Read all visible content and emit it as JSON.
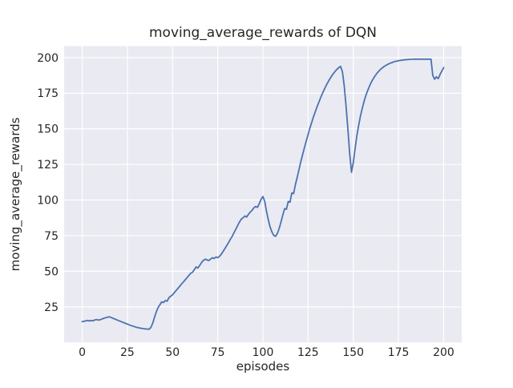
{
  "figure": {
    "kind": "matplotlib-figure",
    "style": "seaborn-darkgrid"
  },
  "chart_data": {
    "type": "line",
    "title": "moving_average_rewards of DQN",
    "xlabel": "episodes",
    "ylabel": "moving_average_rewards",
    "xticks": [
      0,
      25,
      50,
      75,
      100,
      125,
      150,
      175,
      200
    ],
    "yticks": [
      25,
      50,
      75,
      100,
      125,
      150,
      175,
      200
    ],
    "xlim": [
      -10,
      210
    ],
    "ylim": [
      0,
      208
    ],
    "grid": true,
    "legend": "none",
    "series": [
      {
        "name": "DQN",
        "points": [
          [
            0,
            14.6
          ],
          [
            1,
            14.9
          ],
          [
            2,
            15.2
          ],
          [
            3,
            15.4
          ],
          [
            4,
            15.1
          ],
          [
            5,
            15.4
          ],
          [
            6,
            15.2
          ],
          [
            7,
            15.8
          ],
          [
            8,
            16.1
          ],
          [
            9,
            15.7
          ],
          [
            10,
            16.0
          ],
          [
            11,
            16.5
          ],
          [
            12,
            17.0
          ],
          [
            13,
            17.4
          ],
          [
            14,
            17.8
          ],
          [
            15,
            18.0
          ],
          [
            16,
            17.5
          ],
          [
            17,
            17.0
          ],
          [
            18,
            16.5
          ],
          [
            19,
            16.0
          ],
          [
            20,
            15.4
          ],
          [
            21,
            14.9
          ],
          [
            22,
            14.4
          ],
          [
            23,
            13.9
          ],
          [
            24,
            13.4
          ],
          [
            25,
            12.9
          ],
          [
            26,
            12.4
          ],
          [
            27,
            11.9
          ],
          [
            28,
            11.5
          ],
          [
            29,
            11.1
          ],
          [
            30,
            10.7
          ],
          [
            31,
            10.4
          ],
          [
            32,
            10.1
          ],
          [
            33,
            9.9
          ],
          [
            34,
            9.7
          ],
          [
            35,
            9.5
          ],
          [
            36,
            9.4
          ],
          [
            37,
            9.3
          ],
          [
            38,
            10.5
          ],
          [
            39,
            13.5
          ],
          [
            40,
            17.5
          ],
          [
            41,
            21.5
          ],
          [
            42,
            24.5
          ],
          [
            43,
            26.5
          ],
          [
            44,
            28.5
          ],
          [
            45,
            28.0
          ],
          [
            46,
            29.5
          ],
          [
            47,
            29.0
          ],
          [
            48,
            31.5
          ],
          [
            49,
            32.5
          ],
          [
            50,
            33.5
          ],
          [
            51,
            35.0
          ],
          [
            52,
            36.5
          ],
          [
            53,
            38.0
          ],
          [
            54,
            39.5
          ],
          [
            55,
            41.0
          ],
          [
            56,
            42.5
          ],
          [
            57,
            44.0
          ],
          [
            58,
            45.5
          ],
          [
            59,
            47.0
          ],
          [
            60,
            48.5
          ],
          [
            61,
            49.3
          ],
          [
            62,
            51.0
          ],
          [
            63,
            53.0
          ],
          [
            64,
            52.2
          ],
          [
            65,
            54.0
          ],
          [
            66,
            56.0
          ],
          [
            67,
            57.5
          ],
          [
            68,
            58.5
          ],
          [
            69,
            58.0
          ],
          [
            70,
            57.5
          ],
          [
            71,
            58.5
          ],
          [
            72,
            59.5
          ],
          [
            73,
            59.0
          ],
          [
            74,
            60.0
          ],
          [
            75,
            59.5
          ],
          [
            76,
            60.5
          ],
          [
            77,
            62.0
          ],
          [
            78,
            64.0
          ],
          [
            79,
            66.0
          ],
          [
            80,
            68.0
          ],
          [
            81,
            70.2
          ],
          [
            82,
            72.5
          ],
          [
            83,
            74.5
          ],
          [
            84,
            77.0
          ],
          [
            85,
            79.5
          ],
          [
            86,
            82.0
          ],
          [
            87,
            84.5
          ],
          [
            88,
            86.5
          ],
          [
            89,
            87.5
          ],
          [
            90,
            88.8
          ],
          [
            91,
            88.0
          ],
          [
            92,
            90.0
          ],
          [
            93,
            91.5
          ],
          [
            94,
            92.8
          ],
          [
            95,
            94.5
          ],
          [
            96,
            95.5
          ],
          [
            97,
            94.8
          ],
          [
            98,
            97.5
          ],
          [
            99,
            100.5
          ],
          [
            100,
            102.5
          ],
          [
            101,
            99.0
          ],
          [
            102,
            92.0
          ],
          [
            103,
            86.0
          ],
          [
            104,
            81.0
          ],
          [
            105,
            77.5
          ],
          [
            106,
            75.2
          ],
          [
            107,
            74.5
          ],
          [
            108,
            76.5
          ],
          [
            109,
            80.0
          ],
          [
            110,
            84.5
          ],
          [
            111,
            89.5
          ],
          [
            112,
            94.0
          ],
          [
            113,
            93.5
          ],
          [
            114,
            99.0
          ],
          [
            115,
            98.5
          ],
          [
            116,
            105.0
          ],
          [
            117,
            104.5
          ],
          [
            118,
            111.0
          ],
          [
            119,
            116.0
          ],
          [
            120,
            121.5
          ],
          [
            121,
            127.0
          ],
          [
            122,
            132.0
          ],
          [
            123,
            137.0
          ],
          [
            124,
            141.5
          ],
          [
            125,
            146.0
          ],
          [
            126,
            150.5
          ],
          [
            127,
            154.5
          ],
          [
            128,
            158.5
          ],
          [
            129,
            162.0
          ],
          [
            130,
            165.5
          ],
          [
            131,
            168.8
          ],
          [
            132,
            172.0
          ],
          [
            133,
            175.0
          ],
          [
            134,
            177.8
          ],
          [
            135,
            180.4
          ],
          [
            136,
            182.8
          ],
          [
            137,
            185.0
          ],
          [
            138,
            187.0
          ],
          [
            139,
            188.8
          ],
          [
            140,
            190.4
          ],
          [
            141,
            191.8
          ],
          [
            142,
            193.0
          ],
          [
            143,
            193.8
          ],
          [
            144,
            190.0
          ],
          [
            145,
            180.0
          ],
          [
            146,
            166.0
          ],
          [
            147,
            150.0
          ],
          [
            148,
            133.0
          ],
          [
            149,
            119.5
          ],
          [
            150,
            126.0
          ],
          [
            151,
            136.0
          ],
          [
            152,
            145.0
          ],
          [
            153,
            152.5
          ],
          [
            154,
            159.0
          ],
          [
            155,
            164.5
          ],
          [
            156,
            169.5
          ],
          [
            157,
            173.5
          ],
          [
            158,
            177.0
          ],
          [
            159,
            180.0
          ],
          [
            160,
            182.8
          ],
          [
            161,
            185.0
          ],
          [
            162,
            187.0
          ],
          [
            163,
            188.8
          ],
          [
            164,
            190.3
          ],
          [
            165,
            191.6
          ],
          [
            166,
            192.7
          ],
          [
            167,
            193.7
          ],
          [
            168,
            194.5
          ],
          [
            169,
            195.2
          ],
          [
            170,
            195.8
          ],
          [
            171,
            196.3
          ],
          [
            172,
            196.8
          ],
          [
            173,
            197.2
          ],
          [
            174,
            197.5
          ],
          [
            175,
            197.8
          ],
          [
            176,
            198.0
          ],
          [
            177,
            198.2
          ],
          [
            178,
            198.4
          ],
          [
            179,
            198.5
          ],
          [
            180,
            198.6
          ],
          [
            181,
            198.7
          ],
          [
            182,
            198.8
          ],
          [
            183,
            198.8
          ],
          [
            184,
            198.9
          ],
          [
            185,
            198.9
          ],
          [
            186,
            198.9
          ],
          [
            187,
            198.9
          ],
          [
            188,
            198.9
          ],
          [
            189,
            198.9
          ],
          [
            190,
            198.9
          ],
          [
            191,
            198.9
          ],
          [
            192,
            198.9
          ],
          [
            193,
            198.9
          ],
          [
            194,
            187.5
          ],
          [
            195,
            184.8
          ],
          [
            196,
            186.5
          ],
          [
            197,
            185.2
          ],
          [
            198,
            188.0
          ],
          [
            199,
            190.5
          ],
          [
            200,
            193.0
          ]
        ]
      }
    ],
    "colors": {
      "line": "#4c72b0",
      "plot_background": "#eaeaf2",
      "gridline": "#ffffff",
      "text": "#262626",
      "figure_background": "#ffffff"
    }
  }
}
